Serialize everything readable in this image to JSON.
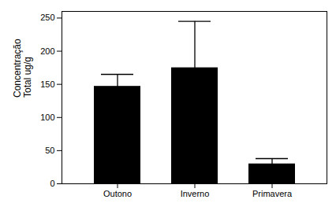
{
  "chart_data": {
    "type": "bar",
    "categories": [
      "Outono",
      "Inverno",
      "Primavera"
    ],
    "values": [
      147,
      175,
      30
    ],
    "errors": [
      18,
      70,
      8
    ],
    "color": "#000000",
    "ylabel": "Concentração\nTotal ug/g",
    "ylim": [
      0,
      260
    ],
    "yticks": [
      0,
      50,
      100,
      150,
      200,
      250
    ],
    "grid": false
  }
}
